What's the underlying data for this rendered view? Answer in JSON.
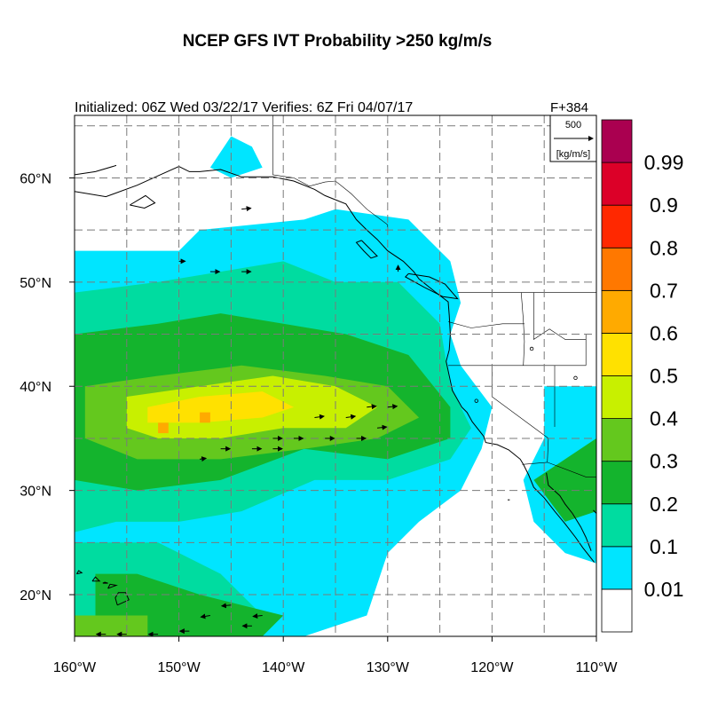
{
  "header": {
    "title": "NCEP GFS IVT Probability >250 kg/m/s",
    "initialized": "Initialized: 06Z Wed 03/22/17 Verifies:  6Z Fri 04/07/17",
    "forecast_hour": "F+384"
  },
  "map": {
    "lon_range": [
      -160,
      -110
    ],
    "lat_range": [
      16,
      66
    ],
    "lon_ticks": [
      {
        "value": -160,
        "label": "160°W"
      },
      {
        "value": -150,
        "label": "150°W"
      },
      {
        "value": -140,
        "label": "140°W"
      },
      {
        "value": -130,
        "label": "130°W"
      },
      {
        "value": -120,
        "label": "120°W"
      },
      {
        "value": -110,
        "label": "110°W"
      }
    ],
    "lat_ticks": [
      {
        "value": 20,
        "label": "20°N"
      },
      {
        "value": 30,
        "label": "30°N"
      },
      {
        "value": 40,
        "label": "40°N"
      },
      {
        "value": 50,
        "label": "50°N"
      },
      {
        "value": 60,
        "label": "60°N"
      }
    ],
    "grid": true
  },
  "reference_vector": {
    "magnitude": "500",
    "units": "[kg/m/s]"
  },
  "colorbar": {
    "levels": [
      {
        "label": "",
        "color": "#ffffff"
      },
      {
        "label": "0.01",
        "color": "#00e5ff"
      },
      {
        "label": "0.1",
        "color": "#00dca0"
      },
      {
        "label": "0.2",
        "color": "#14b42d"
      },
      {
        "label": "0.3",
        "color": "#64c81e"
      },
      {
        "label": "0.4",
        "color": "#c8f000"
      },
      {
        "label": "0.5",
        "color": "#ffe100"
      },
      {
        "label": "0.6",
        "color": "#ffaa00"
      },
      {
        "label": "0.7",
        "color": "#ff7800"
      },
      {
        "label": "0.8",
        "color": "#ff2800"
      },
      {
        "label": "0.9",
        "color": "#dc0028"
      },
      {
        "label": "0.99",
        "color": "#aa0050"
      }
    ]
  },
  "probability_regions": [
    {
      "level": 1,
      "points": [
        [
          -160,
          53
        ],
        [
          -150,
          53
        ],
        [
          -148,
          55
        ],
        [
          -138,
          56
        ],
        [
          -135,
          57
        ],
        [
          -128,
          56
        ],
        [
          -124,
          52
        ],
        [
          -123,
          48
        ],
        [
          -124,
          45
        ],
        [
          -123,
          42
        ],
        [
          -120,
          38
        ],
        [
          -121,
          34
        ],
        [
          -123,
          30
        ],
        [
          -127,
          27
        ],
        [
          -130,
          24
        ],
        [
          -132,
          18
        ],
        [
          -138,
          16
        ],
        [
          -160,
          16
        ]
      ]
    },
    {
      "level": 1,
      "points": [
        [
          -145,
          64
        ],
        [
          -143,
          63
        ],
        [
          -142,
          61
        ],
        [
          -145,
          60
        ],
        [
          -147,
          61
        ]
      ]
    },
    {
      "level": 1,
      "points": [
        [
          -115,
          40
        ],
        [
          -110,
          40
        ],
        [
          -110,
          23
        ],
        [
          -113,
          24
        ],
        [
          -116,
          27
        ],
        [
          -117,
          31
        ],
        [
          -115,
          35
        ]
      ]
    },
    {
      "level": 2,
      "points": [
        [
          -160,
          49
        ],
        [
          -152,
          50
        ],
        [
          -146,
          51
        ],
        [
          -140,
          52
        ],
        [
          -135,
          50
        ],
        [
          -129,
          50
        ],
        [
          -125,
          46
        ],
        [
          -124,
          40
        ],
        [
          -122,
          36
        ],
        [
          -124,
          33
        ],
        [
          -130,
          31
        ],
        [
          -137,
          31
        ],
        [
          -144,
          28
        ],
        [
          -150,
          27
        ],
        [
          -156,
          27
        ],
        [
          -160,
          26
        ]
      ]
    },
    {
      "level": 2,
      "points": [
        [
          -160,
          25
        ],
        [
          -152,
          25
        ],
        [
          -146,
          22
        ],
        [
          -142,
          18
        ],
        [
          -150,
          16
        ],
        [
          -160,
          16
        ]
      ]
    },
    {
      "level": 3,
      "points": [
        [
          -160,
          45
        ],
        [
          -152,
          46
        ],
        [
          -146,
          47
        ],
        [
          -140,
          46
        ],
        [
          -134,
          45
        ],
        [
          -128,
          43
        ],
        [
          -124,
          38
        ],
        [
          -124,
          35
        ],
        [
          -130,
          33
        ],
        [
          -138,
          34
        ],
        [
          -146,
          31
        ],
        [
          -154,
          30
        ],
        [
          -160,
          31
        ]
      ]
    },
    {
      "level": 3,
      "points": [
        [
          -158,
          22
        ],
        [
          -154,
          22
        ],
        [
          -148,
          20
        ],
        [
          -140,
          18
        ],
        [
          -142,
          16
        ],
        [
          -158,
          16
        ]
      ]
    },
    {
      "level": 3,
      "points": [
        [
          -116,
          31
        ],
        [
          -113,
          33
        ],
        [
          -110,
          35
        ],
        [
          -110,
          28
        ],
        [
          -113,
          27
        ]
      ]
    },
    {
      "level": 4,
      "points": [
        [
          -159,
          40
        ],
        [
          -152,
          41
        ],
        [
          -144,
          42
        ],
        [
          -136,
          41
        ],
        [
          -130,
          40
        ],
        [
          -127,
          37
        ],
        [
          -131,
          35
        ],
        [
          -138,
          34
        ],
        [
          -146,
          33
        ],
        [
          -154,
          33
        ],
        [
          -159,
          35
        ]
      ]
    },
    {
      "level": 4,
      "points": [
        [
          -160,
          18
        ],
        [
          -153,
          18
        ],
        [
          -153,
          16
        ],
        [
          -160,
          16
        ]
      ]
    },
    {
      "level": 5,
      "points": [
        [
          -155,
          39
        ],
        [
          -148,
          40
        ],
        [
          -141,
          41
        ],
        [
          -135,
          40
        ],
        [
          -131,
          38
        ],
        [
          -134,
          36
        ],
        [
          -140,
          36
        ],
        [
          -146,
          35
        ],
        [
          -152,
          35
        ],
        [
          -155,
          36
        ]
      ]
    },
    {
      "level": 6,
      "points": [
        [
          -153,
          38
        ],
        [
          -148,
          39
        ],
        [
          -142,
          39.5
        ],
        [
          -139,
          38
        ],
        [
          -142,
          37
        ],
        [
          -148,
          36.5
        ],
        [
          -153,
          36.5
        ]
      ]
    },
    {
      "level": 7,
      "points": [
        [
          -148,
          37.5
        ],
        [
          -147,
          37.5
        ],
        [
          -147,
          36.5
        ],
        [
          -148,
          36.5
        ]
      ]
    },
    {
      "level": 7,
      "points": [
        [
          -152,
          36.5
        ],
        [
          -151,
          36.5
        ],
        [
          -151,
          35.5
        ],
        [
          -152,
          35.5
        ]
      ]
    }
  ],
  "ivt_vectors": [
    {
      "lon": -144,
      "lat": 57,
      "u": 3,
      "v": 0.3
    },
    {
      "lon": -150,
      "lat": 52,
      "u": 2,
      "v": 0
    },
    {
      "lon": -147,
      "lat": 51,
      "u": 3,
      "v": 0
    },
    {
      "lon": -144,
      "lat": 51,
      "u": 3,
      "v": 0
    },
    {
      "lon": -137,
      "lat": 37,
      "u": 3,
      "v": 0.4
    },
    {
      "lon": -134,
      "lat": 37,
      "u": 3,
      "v": 0.4
    },
    {
      "lon": -132,
      "lat": 38,
      "u": 3,
      "v": 0.3
    },
    {
      "lon": -130,
      "lat": 38,
      "u": 3,
      "v": 0.3
    },
    {
      "lon": -141,
      "lat": 35,
      "u": 3,
      "v": 0
    },
    {
      "lon": -139,
      "lat": 35,
      "u": 3,
      "v": 0
    },
    {
      "lon": -136,
      "lat": 35,
      "u": 3,
      "v": 0
    },
    {
      "lon": -133,
      "lat": 35,
      "u": 3,
      "v": 0
    },
    {
      "lon": -131,
      "lat": 36,
      "u": 3,
      "v": 0.3
    },
    {
      "lon": -146,
      "lat": 34,
      "u": 3,
      "v": 0
    },
    {
      "lon": -143,
      "lat": 34,
      "u": 3,
      "v": 0
    },
    {
      "lon": -141,
      "lat": 34,
      "u": 3,
      "v": 0
    },
    {
      "lon": -148,
      "lat": 33,
      "u": 2,
      "v": 0.3
    },
    {
      "lon": -129,
      "lat": 51,
      "u": 0,
      "v": 2
    },
    {
      "lon": -145,
      "lat": 19,
      "u": -3,
      "v": -0.3
    },
    {
      "lon": -142,
      "lat": 18,
      "u": -3,
      "v": -0.3
    },
    {
      "lon": -147,
      "lat": 18,
      "u": -3,
      "v": -0.5
    },
    {
      "lon": -143,
      "lat": 17,
      "u": -3,
      "v": 0
    },
    {
      "lon": -149,
      "lat": 16.5,
      "u": -3,
      "v": 0
    },
    {
      "lon": -152,
      "lat": 16.2,
      "u": -3,
      "v": 0
    },
    {
      "lon": -155,
      "lat": 16.2,
      "u": -3,
      "v": 0
    },
    {
      "lon": -157,
      "lat": 16.2,
      "u": -3,
      "v": 0
    }
  ],
  "coastlines": [
    [
      [
        -160,
        58.7
      ],
      [
        -157,
        58.2
      ],
      [
        -154,
        59.3
      ],
      [
        -152,
        60.2
      ],
      [
        -150,
        61.1
      ],
      [
        -149,
        60.6
      ],
      [
        -148,
        60.6
      ],
      [
        -146,
        60.8
      ],
      [
        -144,
        60.1
      ],
      [
        -141,
        60.1
      ],
      [
        -139,
        59.7
      ],
      [
        -137,
        58.9
      ],
      [
        -136,
        58.3
      ],
      [
        -134,
        57.5
      ],
      [
        -133,
        56
      ],
      [
        -132,
        55
      ],
      [
        -131,
        54.1
      ],
      [
        -130,
        53
      ],
      [
        -128.5,
        52
      ],
      [
        -127.5,
        51
      ],
      [
        -127,
        50.3
      ],
      [
        -125.5,
        49.1
      ],
      [
        -124.2,
        48.1
      ],
      [
        -124.1,
        46.8
      ],
      [
        -124,
        45
      ],
      [
        -124.1,
        43.5
      ],
      [
        -124.4,
        42.4
      ],
      [
        -124.1,
        41
      ],
      [
        -123.8,
        39.6
      ],
      [
        -122.9,
        38
      ],
      [
        -122.4,
        37.5
      ],
      [
        -121.9,
        36.6
      ],
      [
        -120.8,
        35.2
      ],
      [
        -120.6,
        34.6
      ],
      [
        -119.5,
        34.4
      ],
      [
        -118.4,
        33.9
      ],
      [
        -117.3,
        33
      ],
      [
        -117,
        32.5
      ],
      [
        -116.5,
        31.5
      ],
      [
        -116,
        30.3
      ],
      [
        -115,
        29.3
      ],
      [
        -114,
        28
      ],
      [
        -113,
        26.8
      ],
      [
        -112,
        25.5
      ],
      [
        -111.3,
        24.5
      ],
      [
        -110.2,
        23.1
      ]
    ],
    [
      [
        -114.8,
        31.7
      ],
      [
        -114.6,
        30.5
      ],
      [
        -113.5,
        29.5
      ],
      [
        -113,
        28.7
      ],
      [
        -112.3,
        27.8
      ],
      [
        -111.5,
        26.5
      ],
      [
        -111,
        25.5
      ],
      [
        -110.5,
        24.2
      ]
    ],
    [
      [
        -110,
        27.8
      ],
      [
        -110.3,
        28.1
      ]
    ],
    [
      [
        -132.5,
        54
      ],
      [
        -131.8,
        53.3
      ],
      [
        -131,
        52.5
      ],
      [
        -131.6,
        52.3
      ],
      [
        -132.3,
        53
      ],
      [
        -133,
        53.8
      ],
      [
        -132.5,
        54
      ]
    ],
    [
      [
        -128,
        50.8
      ],
      [
        -126,
        50.5
      ],
      [
        -124.5,
        49.8
      ],
      [
        -123.3,
        48.4
      ],
      [
        -124.7,
        48.6
      ],
      [
        -126.5,
        49.5
      ],
      [
        -128.3,
        50.5
      ],
      [
        -128,
        50.8
      ]
    ],
    [
      [
        -154.7,
        57.4
      ],
      [
        -153.3,
        57.1
      ],
      [
        -152.3,
        57.6
      ],
      [
        -153.2,
        58.3
      ],
      [
        -154.7,
        57.4
      ]
    ],
    [
      [
        -155.9,
        19
      ],
      [
        -154.8,
        19.5
      ],
      [
        -155.1,
        20.2
      ],
      [
        -155.8,
        20.2
      ],
      [
        -156.1,
        19.7
      ],
      [
        -155.9,
        19
      ]
    ],
    [
      [
        -156.8,
        20.6
      ],
      [
        -156,
        20.9
      ],
      [
        -156.6,
        21
      ],
      [
        -156.8,
        20.6
      ]
    ],
    [
      [
        -158.3,
        21.3
      ],
      [
        -157.6,
        21.3
      ],
      [
        -158,
        21.7
      ],
      [
        -158.3,
        21.3
      ]
    ],
    [
      [
        -159.8,
        22
      ],
      [
        -159.3,
        22.1
      ],
      [
        -159.6,
        22.3
      ],
      [
        -159.8,
        22
      ]
    ],
    [
      [
        -157.3,
        21.1
      ],
      [
        -156.8,
        21.1
      ],
      [
        -157.1,
        21.2
      ],
      [
        -157.3,
        21.1
      ]
    ],
    [
      [
        -160,
        60.3
      ],
      [
        -158,
        60.6
      ],
      [
        -156,
        61.2
      ]
    ],
    [
      [
        -118.5,
        29.1
      ],
      [
        -118.3,
        29.1
      ]
    ]
  ],
  "borders": [
    [
      [
        -141,
        69
      ],
      [
        -141,
        60.3
      ]
    ],
    [
      [
        -141,
        60.3
      ],
      [
        -139,
        60
      ],
      [
        -137.5,
        59.2
      ],
      [
        -136,
        59.6
      ],
      [
        -135,
        59.7
      ],
      [
        -133.5,
        58.5
      ],
      [
        -132,
        57
      ],
      [
        -130,
        55.5
      ],
      [
        -130,
        54.8
      ]
    ],
    [
      [
        -123.3,
        49
      ],
      [
        -110,
        49
      ]
    ],
    [
      [
        -124.2,
        46.2
      ],
      [
        -122,
        45.6
      ],
      [
        -119,
        46
      ],
      [
        -116.9,
        46
      ]
    ],
    [
      [
        -117.2,
        49
      ],
      [
        -117,
        46.3
      ],
      [
        -116.9,
        44.3
      ],
      [
        -117,
        42
      ]
    ],
    [
      [
        -124.2,
        42
      ],
      [
        -111,
        42
      ]
    ],
    [
      [
        -120,
        42
      ],
      [
        -120,
        39
      ],
      [
        -114.6,
        35
      ]
    ],
    [
      [
        -114.6,
        35
      ],
      [
        -114.7,
        32.7
      ]
    ],
    [
      [
        -117.1,
        32.5
      ],
      [
        -114.7,
        32.7
      ],
      [
        -111,
        31.3
      ],
      [
        -110,
        31.3
      ]
    ],
    [
      [
        -114,
        42
      ],
      [
        -114,
        37
      ],
      [
        -114,
        36.1
      ]
    ],
    [
      [
        -111,
        45
      ],
      [
        -111,
        42
      ]
    ],
    [
      [
        -116,
        49
      ],
      [
        -116,
        44.5
      ],
      [
        -114.5,
        45.5
      ],
      [
        -113,
        44.5
      ],
      [
        -111,
        44.5
      ]
    ]
  ],
  "city_markers": [
    {
      "lon": -121.5,
      "lat": 38.6
    },
    {
      "lon": -116.2,
      "lat": 43.6
    },
    {
      "lon": -112,
      "lat": 40.8
    }
  ]
}
